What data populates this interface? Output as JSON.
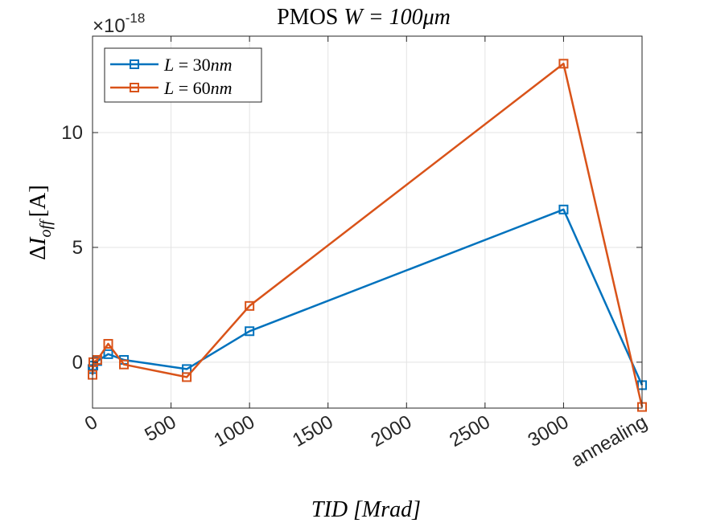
{
  "chart_data": {
    "type": "line",
    "title_plain": "PMOS ",
    "title_math": "W = 100μm",
    "xlabel": "TID [Mrad]",
    "ylabel": "ΔI_off [A]",
    "ylabel_delta": "Δ",
    "ylabel_I": "I",
    "ylabel_sub": "off",
    "ylabel_unit": "[A]",
    "exponent_prefix": "×10",
    "exponent_power": "-18",
    "xlim": [
      0,
      3500
    ],
    "ylim": [
      -2,
      14.2
    ],
    "x_ticks": [
      {
        "value": 0,
        "label": "0"
      },
      {
        "value": 500,
        "label": "500"
      },
      {
        "value": 1000,
        "label": "1000"
      },
      {
        "value": 1500,
        "label": "1500"
      },
      {
        "value": 2000,
        "label": "2000"
      },
      {
        "value": 2500,
        "label": "2500"
      },
      {
        "value": 3000,
        "label": "3000"
      },
      {
        "value": 3500,
        "label": "annealing"
      }
    ],
    "y_ticks": [
      {
        "value": 0,
        "label": "0"
      },
      {
        "value": 5,
        "label": "5"
      },
      {
        "value": 10,
        "label": "10"
      }
    ],
    "grid": true,
    "legend_position": "top-left",
    "series": [
      {
        "name": "L = 30nm",
        "name_var": "L",
        "name_eq": " = 30",
        "name_unit": "nm",
        "color": "#0072BD",
        "x": [
          0,
          5,
          30,
          100,
          200,
          600,
          1000,
          3000,
          3500
        ],
        "y": [
          -0.3,
          -0.15,
          0.05,
          0.35,
          0.1,
          -0.3,
          1.35,
          6.65,
          -1.0
        ]
      },
      {
        "name": "L = 60nm",
        "name_var": "L",
        "name_eq": " = 60",
        "name_unit": "nm",
        "color": "#D95319",
        "x": [
          0,
          5,
          30,
          100,
          200,
          600,
          1000,
          3000,
          3500
        ],
        "y": [
          -0.55,
          0.0,
          0.1,
          0.8,
          -0.1,
          -0.65,
          2.45,
          13.0,
          -1.95
        ]
      }
    ]
  }
}
